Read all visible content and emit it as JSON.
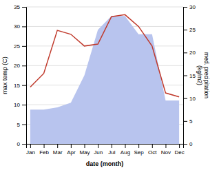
{
  "chart_data": {
    "type": "line",
    "categories": [
      "Jan",
      "Feb",
      "Mar",
      "Apr",
      "May",
      "Jun",
      "Jul",
      "Aug",
      "Sep",
      "Oct",
      "Nov",
      "Dec"
    ],
    "series": [
      {
        "type": "area",
        "axis": "y2",
        "color": "#b8c4ee",
        "values": [
          7.5,
          7.5,
          8.0,
          9.0,
          15.0,
          25.0,
          28.0,
          28.0,
          24.0,
          24.0,
          9.5,
          9.5
        ]
      },
      {
        "type": "line",
        "color": "#c0392b",
        "values": [
          14.5,
          18.0,
          29.0,
          28.0,
          25.0,
          25.5,
          32.5,
          33.0,
          30.0,
          25.0,
          13.0,
          12.0
        ]
      }
    ],
    "xlabel": "date (month)",
    "ylabel": "max temp (C)",
    "y2label": "med. precipitation\n(kg/m2)",
    "ylim": [
      0,
      35
    ],
    "yticks": [
      0,
      5,
      10,
      15,
      20,
      25,
      30,
      35
    ],
    "y2lim": [
      0,
      30
    ],
    "y2ticks": [
      0,
      5,
      10,
      15,
      20,
      25,
      30
    ],
    "grid": true
  }
}
